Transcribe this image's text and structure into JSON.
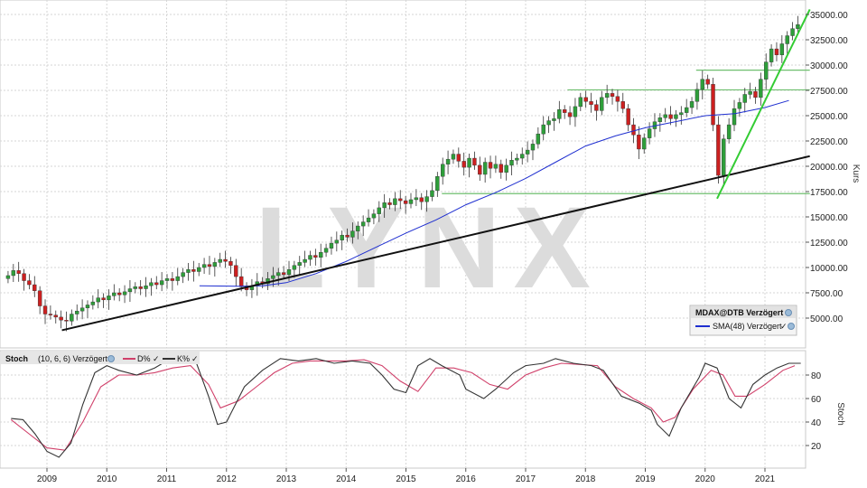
{
  "chart_data": [
    {
      "type": "candlestick",
      "ylabel": "Kurs",
      "ylim": [
        3000,
        36000
      ],
      "y_ticks": [
        "5000.00",
        "7500.00",
        "10000.00",
        "12500.00",
        "15000.00",
        "17500.00",
        "20000.00",
        "22500.00",
        "25000.00",
        "27500.00",
        "30000.00",
        "32500.00",
        "35000.00"
      ],
      "x_labels": [
        "2009",
        "2010",
        "2011",
        "2012",
        "2013",
        "2014",
        "2015",
        "2016",
        "2017",
        "2018",
        "2019",
        "2020",
        "2021"
      ],
      "watermark": "LYNX",
      "legend": {
        "instrument": "MDAX@DTB Verzögert",
        "sma_label": "SMA(48) Verzögert"
      },
      "colors": {
        "up": "#2e9e3a",
        "down": "#cc2020",
        "sma": "#1f2fd0",
        "trend": "#111111",
        "support": "#6fbf6f",
        "channel": "#33cc33"
      },
      "closes": [
        9200,
        9700,
        9400,
        8700,
        8300,
        7700,
        6200,
        5400,
        5300,
        5100,
        4800,
        4700,
        5400,
        5700,
        6000,
        6300,
        6600,
        7000,
        6800,
        7200,
        7500,
        7300,
        7600,
        7900,
        8100,
        7900,
        8200,
        8500,
        8300,
        8700,
        8900,
        8700,
        9100,
        9500,
        9800,
        9600,
        10000,
        10300,
        10100,
        10500,
        10800,
        10600,
        10200,
        9100,
        8100,
        7800,
        8200,
        8600,
        8400,
        8900,
        9200,
        9500,
        9300,
        9800,
        10200,
        10500,
        10800,
        11200,
        11000,
        11500,
        11900,
        12400,
        12700,
        13200,
        13000,
        13600,
        14100,
        14500,
        14900,
        15300,
        15900,
        16400,
        16200,
        16800,
        16600,
        16300,
        16700,
        16900,
        16500,
        17000,
        17600,
        19000,
        20200,
        20700,
        21200,
        20500,
        19900,
        20800,
        20100,
        19200,
        20400,
        19800,
        20200,
        19400,
        20100,
        20600,
        20800,
        21200,
        21600,
        22200,
        23200,
        24100,
        24500,
        24700,
        25600,
        25300,
        24900,
        25900,
        26800,
        26400,
        26100,
        25500,
        26800,
        27200,
        26900,
        26400,
        25700,
        24100,
        23100,
        21700,
        22800,
        23700,
        24400,
        24800,
        25100,
        24700,
        25100,
        25300,
        25800,
        26400,
        27600,
        28600,
        28100,
        24100,
        19100,
        22700,
        24100,
        25700,
        26300,
        27100,
        27400,
        26800,
        28600,
        30300,
        31600,
        31000,
        32100,
        32900,
        33600,
        34000
      ],
      "sma48": [
        [
          2011.55,
          8200
        ],
        [
          2012.2,
          8150
        ],
        [
          2012.6,
          8200
        ],
        [
          2013.0,
          8500
        ],
        [
          2013.5,
          9400
        ],
        [
          2014.0,
          10600
        ],
        [
          2014.5,
          12000
        ],
        [
          2015.0,
          13400
        ],
        [
          2015.5,
          14700
        ],
        [
          2016.0,
          16200
        ],
        [
          2016.5,
          17400
        ],
        [
          2017.0,
          18800
        ],
        [
          2017.5,
          20400
        ],
        [
          2018.0,
          22000
        ],
        [
          2018.5,
          23000
        ],
        [
          2019.0,
          23800
        ],
        [
          2019.5,
          24400
        ],
        [
          2020.0,
          25000
        ],
        [
          2020.5,
          25200
        ],
        [
          2021.0,
          25800
        ],
        [
          2021.4,
          26500
        ]
      ],
      "trend_lines": [
        {
          "from": [
            2009.25,
            3800
          ],
          "to": [
            2021.75,
            21000
          ]
        },
        {
          "from": [
            2020.2,
            16800
          ],
          "to": [
            2021.75,
            35500
          ]
        }
      ],
      "support_lines": [
        {
          "from": [
            2015.6,
            17300
          ],
          "to": [
            2021.75,
            17300
          ]
        },
        {
          "from": [
            2017.7,
            27550
          ],
          "to": [
            2021.75,
            27550
          ]
        },
        {
          "from": [
            2019.85,
            29500
          ],
          "to": [
            2021.75,
            29500
          ]
        }
      ]
    },
    {
      "type": "line",
      "title": "Stoch",
      "params": "(10, 6, 6) Verzögert",
      "ylabel": "Stoch",
      "ylim": [
        0,
        100
      ],
      "y_ticks": [
        20,
        40,
        60,
        80
      ],
      "series": [
        {
          "name": "D%",
          "color": "#d0406a",
          "points": [
            [
              2008.4,
              42
            ],
            [
              2008.7,
              30
            ],
            [
              2009.0,
              18
            ],
            [
              2009.3,
              16
            ],
            [
              2009.6,
              40
            ],
            [
              2009.9,
              70
            ],
            [
              2010.2,
              80
            ],
            [
              2010.5,
              80
            ],
            [
              2010.8,
              82
            ],
            [
              2011.1,
              86
            ],
            [
              2011.4,
              88
            ],
            [
              2011.7,
              72
            ],
            [
              2011.9,
              52
            ],
            [
              2012.2,
              58
            ],
            [
              2012.5,
              70
            ],
            [
              2012.8,
              82
            ],
            [
              2013.1,
              90
            ],
            [
              2013.4,
              92
            ],
            [
              2013.7,
              92
            ],
            [
              2014.0,
              92
            ],
            [
              2014.3,
              93
            ],
            [
              2014.6,
              88
            ],
            [
              2014.9,
              75
            ],
            [
              2015.2,
              66
            ],
            [
              2015.5,
              86
            ],
            [
              2015.8,
              86
            ],
            [
              2016.1,
              82
            ],
            [
              2016.4,
              72
            ],
            [
              2016.7,
              68
            ],
            [
              2017.0,
              80
            ],
            [
              2017.3,
              86
            ],
            [
              2017.6,
              90
            ],
            [
              2017.9,
              89
            ],
            [
              2018.2,
              88
            ],
            [
              2018.5,
              70
            ],
            [
              2018.8,
              60
            ],
            [
              2019.1,
              52
            ],
            [
              2019.3,
              40
            ],
            [
              2019.5,
              44
            ],
            [
              2019.8,
              68
            ],
            [
              2020.1,
              84
            ],
            [
              2020.3,
              80
            ],
            [
              2020.5,
              62
            ],
            [
              2020.7,
              62
            ],
            [
              2021.0,
              72
            ],
            [
              2021.3,
              84
            ],
            [
              2021.5,
              88
            ]
          ]
        },
        {
          "name": "K%",
          "color": "#333333",
          "points": [
            [
              2008.4,
              43
            ],
            [
              2008.6,
              42
            ],
            [
              2008.8,
              30
            ],
            [
              2009.0,
              15
            ],
            [
              2009.2,
              10
            ],
            [
              2009.4,
              22
            ],
            [
              2009.6,
              55
            ],
            [
              2009.8,
              82
            ],
            [
              2010.0,
              88
            ],
            [
              2010.2,
              84
            ],
            [
              2010.5,
              80
            ],
            [
              2010.8,
              86
            ],
            [
              2011.0,
              92
            ],
            [
              2011.3,
              92
            ],
            [
              2011.5,
              90
            ],
            [
              2011.7,
              62
            ],
            [
              2011.85,
              38
            ],
            [
              2012.0,
              40
            ],
            [
              2012.3,
              70
            ],
            [
              2012.6,
              84
            ],
            [
              2012.9,
              94
            ],
            [
              2013.2,
              92
            ],
            [
              2013.5,
              94
            ],
            [
              2013.8,
              90
            ],
            [
              2014.1,
              92
            ],
            [
              2014.4,
              90
            ],
            [
              2014.6,
              80
            ],
            [
              2014.8,
              68
            ],
            [
              2015.0,
              65
            ],
            [
              2015.2,
              88
            ],
            [
              2015.4,
              94
            ],
            [
              2015.6,
              88
            ],
            [
              2015.9,
              80
            ],
            [
              2016.0,
              68
            ],
            [
              2016.3,
              60
            ],
            [
              2016.5,
              68
            ],
            [
              2016.8,
              82
            ],
            [
              2017.0,
              88
            ],
            [
              2017.3,
              90
            ],
            [
              2017.5,
              94
            ],
            [
              2017.8,
              90
            ],
            [
              2018.1,
              88
            ],
            [
              2018.3,
              84
            ],
            [
              2018.6,
              62
            ],
            [
              2018.9,
              56
            ],
            [
              2019.1,
              50
            ],
            [
              2019.2,
              38
            ],
            [
              2019.4,
              28
            ],
            [
              2019.6,
              52
            ],
            [
              2019.9,
              78
            ],
            [
              2020.0,
              90
            ],
            [
              2020.2,
              86
            ],
            [
              2020.4,
              60
            ],
            [
              2020.6,
              52
            ],
            [
              2020.8,
              72
            ],
            [
              2021.0,
              80
            ],
            [
              2021.2,
              86
            ],
            [
              2021.4,
              90
            ],
            [
              2021.6,
              90
            ]
          ]
        }
      ]
    }
  ]
}
